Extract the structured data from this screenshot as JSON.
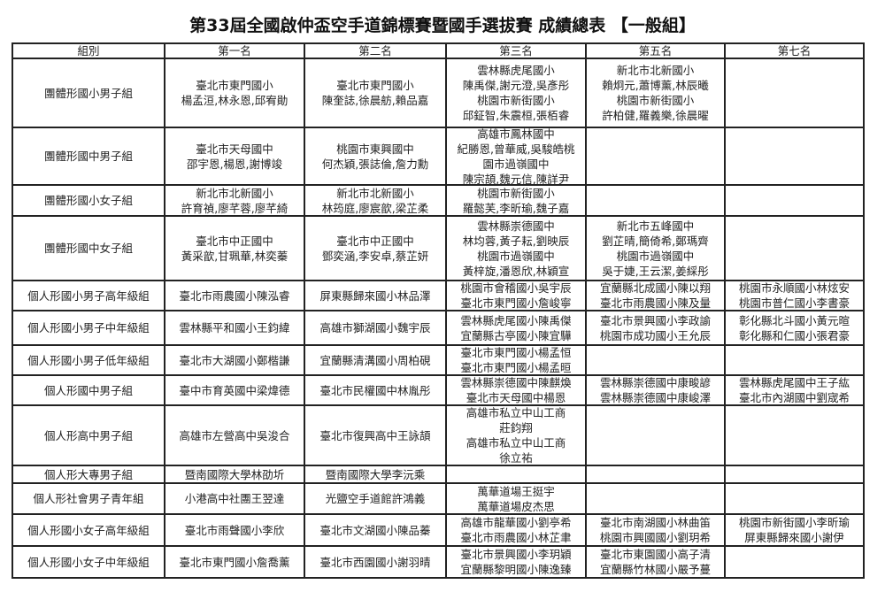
{
  "title": "第33屆全國啟仲盃空手道錦標賽暨國手選拔賽 成績總表 【一般組】",
  "headers": [
    "組別",
    "第一名",
    "第二名",
    "第三名",
    "第五名",
    "第七名"
  ],
  "rows": [
    {
      "group": "團體形國小男子組",
      "first": "臺北市東門國小\n楊孟洹,林永恩,邱宥勛",
      "second": "臺北市東門國小\n陳奎誌,徐晨舫,賴品嘉",
      "third": "雲林縣虎尾國小\n陳禹傑,謝元澄,吳彥彤\n桃園市新街國小\n邱鉦智,朱震桓,張栢睿",
      "fifth": "新北市北新國小\n賴炯元,蕭博薰,林辰曦\n桃園市新街國小\n許柏健,羅義樂,徐晨曜",
      "seventh": ""
    },
    {
      "group": "團體形國中男子組",
      "first": "臺北市天母國中\n邵宇恩,楊恩,謝博竣",
      "second": "桃園市東興國中\n何杰穎,張誌倫,詹力勳",
      "third": "高雄市鳳林國中\n紀勝恩,曾華威,吳駿皓桃\n園市過嶺國中\n陳宗頡,魏元信,陳詳尹",
      "fifth": "",
      "seventh": ""
    },
    {
      "group": "團體形國小女子組",
      "first": "新北市北新國小\n許育禎,廖芊蓉,廖芊綺",
      "second": "新北市北新國小\n林筠庭,廖宸歆,梁芷柔",
      "third": "桃園市新街國小\n羅懿芙,李昕瑜,魏子嘉",
      "fifth": "",
      "seventh": ""
    },
    {
      "group": "團體形國中女子組",
      "first": "臺北市中正國中\n黃采歆,甘珮華,林奕蓁",
      "second": "臺北市中正國中\n鄧奕涵,李安卓,蔡芷妍",
      "third": "雲林縣崇德國中\n林均蓉,黃子耘,劉映辰\n桃園市過嶺國中\n黃梓旋,潘恩欣,林穎宣",
      "fifth": "新北市五峰國中\n劉芷晴,簡倚希,鄭瑪齊\n桃園市過嶺國中\n吳于婕,王云潔,姜綵彤",
      "seventh": ""
    },
    {
      "group": "個人形國小男子高年級組",
      "first": "臺北市雨農國小陳泓睿",
      "second": "屏東縣歸來國小林品澤",
      "third": "桃園市會稽國小吳宇辰\n臺北市東門國小詹峻寧",
      "fifth": "宜蘭縣北成國小陳以翔\n臺北市雨農國小陳及量",
      "seventh": "桃園市永順國小林炫安\n桃園市普仁國小李書豪"
    },
    {
      "group": "個人形國小男子中年級組",
      "first": "雲林縣平和國小王鈞緯",
      "second": "高雄市獅湖國小魏宇辰",
      "third": "雲林縣虎尾國小陳禹傑\n宜蘭縣古亭國小陳宜驊",
      "fifth": "臺北市景興國小李政諭\n桃園市成功國小王允辰",
      "seventh": "彰化縣北斗國小黃元暄\n彰化縣和仁國小張君豪"
    },
    {
      "group": "個人形國小男子低年級組",
      "first": "臺北市大湖國小鄭楷謙",
      "second": "宜蘭縣清溝國小周柏硯",
      "third": "臺北市東門國小楊孟恒\n臺北市東門國小楊孟晅",
      "fifth": "",
      "seventh": ""
    },
    {
      "group": "個人形國中男子組",
      "first": "臺中市育英國中梁煒德",
      "second": "臺北市民權國中林胤彤",
      "third": "雲林縣崇德國中陳麒煥\n臺北市天母國中楊恩",
      "fifth": "雲林縣崇德國中康畯諺\n雲林縣崇德國中康峻澤",
      "seventh": "雲林縣虎尾國中王子紘\n臺北市內湖國中劉宬希"
    },
    {
      "group": "個人形高中男子組",
      "first": "高雄市左營高中吳浚合",
      "second": "臺北市復興高中王詠頡",
      "third": "高雄市私立中山工商\n莊鈞翔\n高雄市私立中山工商\n徐立祐",
      "fifth": "",
      "seventh": ""
    },
    {
      "group": "個人形大專男子組",
      "first": "暨南國際大學林劭圻",
      "second": "暨南國際大學李沅乘",
      "third": "",
      "fifth": "",
      "seventh": ""
    },
    {
      "group": "個人形社會男子青年組",
      "first": "小港高中社團王翌達",
      "second": "光鹽空手道館許鴻義",
      "third": "萬華道場王挺宇\n萬華道場皮杰思",
      "fifth": "",
      "seventh": ""
    },
    {
      "group": "個人形國小女子高年級組",
      "first": "臺北市雨聲國小李欣",
      "second": "臺北市文湖國小陳品蓁",
      "third": "高雄市龍華國小劉亭希\n臺北市雨農國小林芷聿",
      "fifth": "臺北市南湖國小林曲笛\n桃園市興國國小劉玥希",
      "seventh": "桃園市新街國小李昕瑜\n屏東縣歸來國小謝伊"
    },
    {
      "group": "個人形國小女子中年級組",
      "first": "臺北市東門國小詹喬薰",
      "second": "臺北市西園國小謝羽晴",
      "third": "臺北市景興國小李玥穎\n宜蘭縣黎明國小陳逸臻",
      "fifth": "臺北市東園國小高子清\n宜蘭縣竹林國小嚴予蔓",
      "seventh": ""
    }
  ]
}
